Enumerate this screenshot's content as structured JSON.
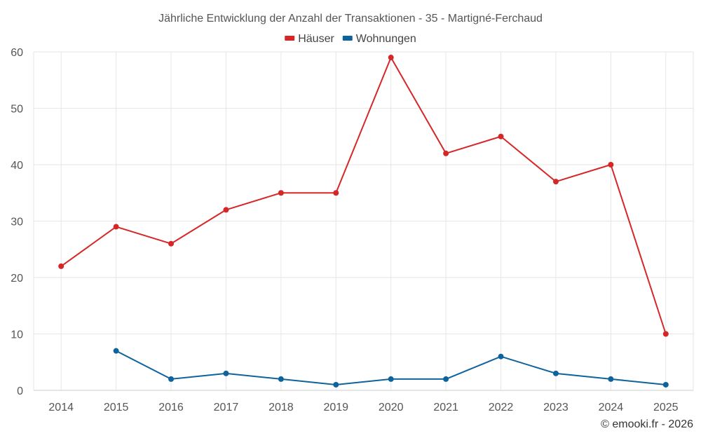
{
  "chart_data": {
    "type": "line",
    "title": "Jährliche Entwicklung der Anzahl der Transaktionen - 35 - Martigné-Ferchaud",
    "categories": [
      "2014",
      "2015",
      "2016",
      "2017",
      "2018",
      "2019",
      "2020",
      "2021",
      "2022",
      "2023",
      "2024",
      "2025"
    ],
    "series": [
      {
        "name": "Häuser",
        "color": "#d62728",
        "values": [
          22,
          29,
          26,
          32,
          35,
          35,
          59,
          42,
          45,
          37,
          40,
          10
        ]
      },
      {
        "name": "Wohnungen",
        "color": "#0e639c",
        "values": [
          null,
          7,
          2,
          3,
          2,
          1,
          2,
          2,
          6,
          3,
          2,
          1
        ]
      }
    ],
    "ylim": [
      0,
      60
    ],
    "yticks": [
      0,
      10,
      20,
      30,
      40,
      50,
      60
    ],
    "grid": true,
    "legend_position": "top-center",
    "xlabel": "",
    "ylabel": ""
  },
  "credit": "© emooki.fr - 2026"
}
